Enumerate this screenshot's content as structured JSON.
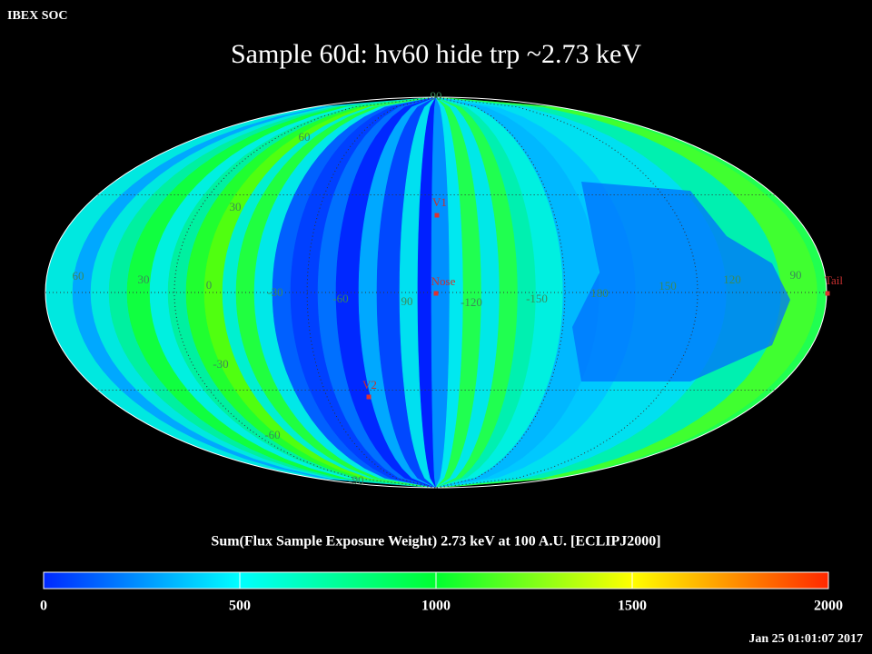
{
  "header": {
    "left": "IBEX SOC",
    "title": "Sample 60d: hv60 hide trp ~2.73 keV"
  },
  "map": {
    "grid_labels": [
      "90",
      "60",
      "30",
      "-30",
      "-60",
      "-90",
      "60",
      "30",
      "0",
      "-30",
      "-60",
      "90",
      "-120",
      "-150",
      "180",
      "150",
      "120",
      "90"
    ],
    "markers": [
      "V1",
      "Nose",
      "V2",
      "Tail"
    ]
  },
  "colorbar": {
    "label": "Sum(Flux Sample Exposure Weight)  2.73 keV at 100 A.U. [ECLIPJ2000]",
    "range": [
      0,
      2000
    ],
    "ticks": [
      0,
      500,
      1000,
      1500,
      2000
    ]
  },
  "footer": {
    "timestamp": "Jan 25 01:01:07 2017"
  }
}
